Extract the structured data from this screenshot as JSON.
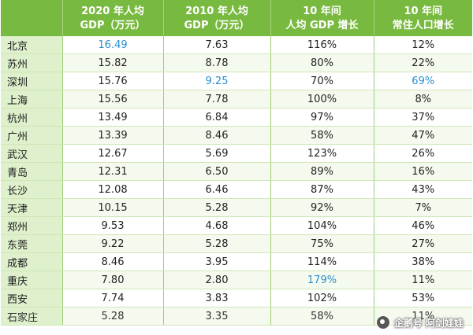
{
  "colors": {
    "header_bg": "#78b93f",
    "city_col_bg": "#def0cc",
    "highlight_text": "#2a8fd0"
  },
  "table": {
    "headers": [
      {
        "lines": []
      },
      {
        "lines": [
          "2020 年人均",
          "GDP（万元）"
        ]
      },
      {
        "lines": [
          "2010 年人均",
          "GDP（万元）"
        ]
      },
      {
        "lines": [
          "10 年间",
          "人均 GDP 增长"
        ]
      },
      {
        "lines": [
          "10 年间",
          "常住人口增长"
        ]
      }
    ],
    "rows": [
      {
        "city": "北京",
        "gdp2020": "16.49",
        "gdp2010": "7.63",
        "gdp_growth": "116%",
        "pop_growth": "12%",
        "highlight": [
          "gdp2020"
        ]
      },
      {
        "city": "苏州",
        "gdp2020": "15.82",
        "gdp2010": "8.78",
        "gdp_growth": "80%",
        "pop_growth": "22%",
        "highlight": []
      },
      {
        "city": "深圳",
        "gdp2020": "15.76",
        "gdp2010": "9.25",
        "gdp_growth": "70%",
        "pop_growth": "69%",
        "highlight": [
          "gdp2010",
          "pop_growth"
        ]
      },
      {
        "city": "上海",
        "gdp2020": "15.56",
        "gdp2010": "7.78",
        "gdp_growth": "100%",
        "pop_growth": "8%",
        "highlight": []
      },
      {
        "city": "杭州",
        "gdp2020": "13.49",
        "gdp2010": "6.84",
        "gdp_growth": "97%",
        "pop_growth": "37%",
        "highlight": []
      },
      {
        "city": "广州",
        "gdp2020": "13.39",
        "gdp2010": "8.46",
        "gdp_growth": "58%",
        "pop_growth": "47%",
        "highlight": []
      },
      {
        "city": "武汉",
        "gdp2020": "12.67",
        "gdp2010": "5.69",
        "gdp_growth": "123%",
        "pop_growth": "26%",
        "highlight": []
      },
      {
        "city": "青岛",
        "gdp2020": "12.31",
        "gdp2010": "6.50",
        "gdp_growth": "89%",
        "pop_growth": "16%",
        "highlight": []
      },
      {
        "city": "长沙",
        "gdp2020": "12.08",
        "gdp2010": "6.46",
        "gdp_growth": "87%",
        "pop_growth": "43%",
        "highlight": []
      },
      {
        "city": "天津",
        "gdp2020": "10.15",
        "gdp2010": "5.28",
        "gdp_growth": "92%",
        "pop_growth": "7%",
        "highlight": []
      },
      {
        "city": "郑州",
        "gdp2020": "9.53",
        "gdp2010": "4.68",
        "gdp_growth": "104%",
        "pop_growth": "46%",
        "highlight": []
      },
      {
        "city": "东莞",
        "gdp2020": "9.22",
        "gdp2010": "5.28",
        "gdp_growth": "75%",
        "pop_growth": "27%",
        "highlight": []
      },
      {
        "city": "成都",
        "gdp2020": "8.46",
        "gdp2010": "3.95",
        "gdp_growth": "114%",
        "pop_growth": "38%",
        "highlight": []
      },
      {
        "city": "重庆",
        "gdp2020": "7.80",
        "gdp2010": "2.80",
        "gdp_growth": "179%",
        "pop_growth": "11%",
        "highlight": [
          "gdp_growth"
        ]
      },
      {
        "city": "西安",
        "gdp2020": "7.74",
        "gdp2010": "3.83",
        "gdp_growth": "102%",
        "pop_growth": "53%",
        "highlight": []
      },
      {
        "city": "石家庄",
        "gdp2020": "5.28",
        "gdp2010": "3.35",
        "gdp_growth": "58%",
        "pop_growth": "11%",
        "highlight": []
      }
    ]
  },
  "watermark": {
    "text": "企鹅号 阿剑娃娃"
  }
}
